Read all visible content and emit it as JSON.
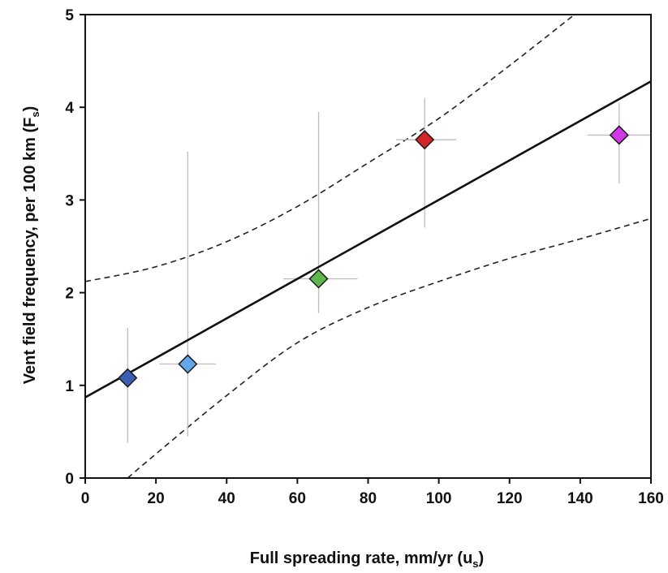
{
  "chart_data": {
    "type": "scatter",
    "xlabel": "Full spreading rate, mm/yr (u",
    "xlabel_sub": "s",
    "xlabel_end": ")",
    "ylabel": "Vent field frequency, per 100 km (F",
    "ylabel_sub": "s",
    "ylabel_end": ")",
    "xlim": [
      0,
      160
    ],
    "ylim": [
      0,
      5
    ],
    "xticks": [
      0,
      20,
      40,
      60,
      80,
      100,
      120,
      140,
      160
    ],
    "yticks": [
      0,
      1,
      2,
      3,
      4,
      5
    ],
    "grid": false,
    "points": [
      {
        "x": 12,
        "y": 1.08,
        "y_err": [
          0.38,
          1.62
        ],
        "x_err": [
          12,
          12
        ],
        "color": "#3a5fb5"
      },
      {
        "x": 29,
        "y": 1.23,
        "y_err": [
          0.45,
          3.52
        ],
        "x_err": [
          21,
          37
        ],
        "color": "#64a6ec"
      },
      {
        "x": 66,
        "y": 2.15,
        "y_err": [
          1.78,
          3.95
        ],
        "x_err": [
          56,
          77
        ],
        "color": "#5fb64f"
      },
      {
        "x": 96,
        "y": 3.65,
        "y_err": [
          2.7,
          4.1
        ],
        "x_err": [
          88,
          105
        ],
        "color": "#d4262a"
      },
      {
        "x": 151,
        "y": 3.7,
        "y_err": [
          3.18,
          4.05
        ],
        "x_err": [
          142,
          160
        ],
        "color": "#d238e8"
      }
    ],
    "fit_line": {
      "x": [
        0,
        160
      ],
      "y": [
        0.87,
        4.28
      ]
    },
    "confidence_upper": {
      "x": [
        0,
        20,
        40,
        60,
        80,
        100,
        120,
        140
      ],
      "y": [
        2.12,
        2.28,
        2.55,
        2.93,
        3.4,
        3.88,
        4.45,
        5.05
      ]
    },
    "confidence_lower": {
      "x": [
        12,
        20,
        40,
        60,
        80,
        100,
        120,
        140,
        160
      ],
      "y": [
        0.0,
        0.26,
        0.89,
        1.46,
        1.84,
        2.12,
        2.37,
        2.58,
        2.8
      ]
    }
  }
}
